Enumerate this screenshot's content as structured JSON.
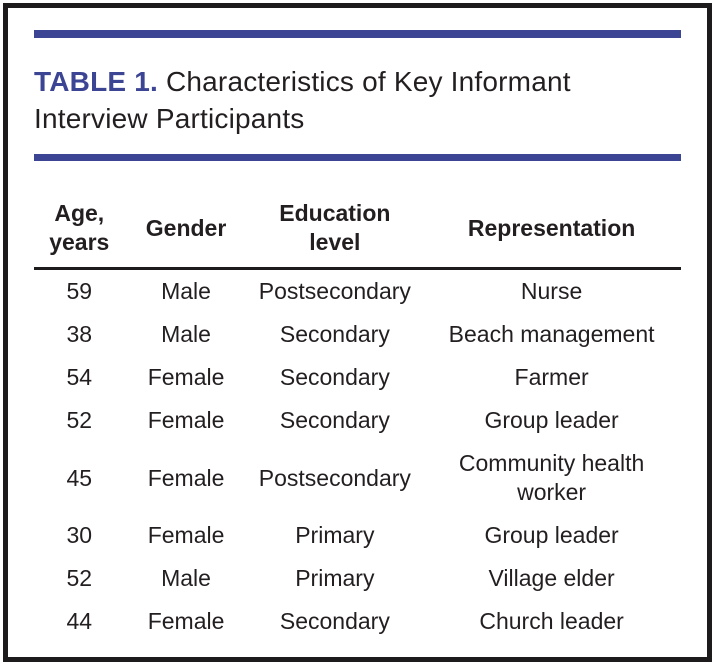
{
  "document": {
    "table_label": "TABLE 1.",
    "table_title": " Characteristics of Key Informant Interview Participants"
  },
  "table": {
    "columns": [
      {
        "label": "Age, years"
      },
      {
        "label": "Gender"
      },
      {
        "label": "Education level"
      },
      {
        "label": "Representation"
      }
    ],
    "rows": [
      {
        "age": "59",
        "gender": "Male",
        "education": "Postsecondary",
        "representation": "Nurse"
      },
      {
        "age": "38",
        "gender": "Male",
        "education": "Secondary",
        "representation": "Beach management"
      },
      {
        "age": "54",
        "gender": "Female",
        "education": "Secondary",
        "representation": "Farmer"
      },
      {
        "age": "52",
        "gender": "Female",
        "education": "Secondary",
        "representation": "Group leader"
      },
      {
        "age": "45",
        "gender": "Female",
        "education": "Postsecondary",
        "representation": "Community health worker"
      },
      {
        "age": "30",
        "gender": "Female",
        "education": "Primary",
        "representation": "Group leader"
      },
      {
        "age": "52",
        "gender": "Male",
        "education": "Primary",
        "representation": "Village elder"
      },
      {
        "age": "44",
        "gender": "Female",
        "education": "Secondary",
        "representation": "Church leader"
      }
    ]
  },
  "colors": {
    "accent_blue": "#3c4494",
    "text_black": "#231f20",
    "border_black": "#1d1b1c"
  }
}
